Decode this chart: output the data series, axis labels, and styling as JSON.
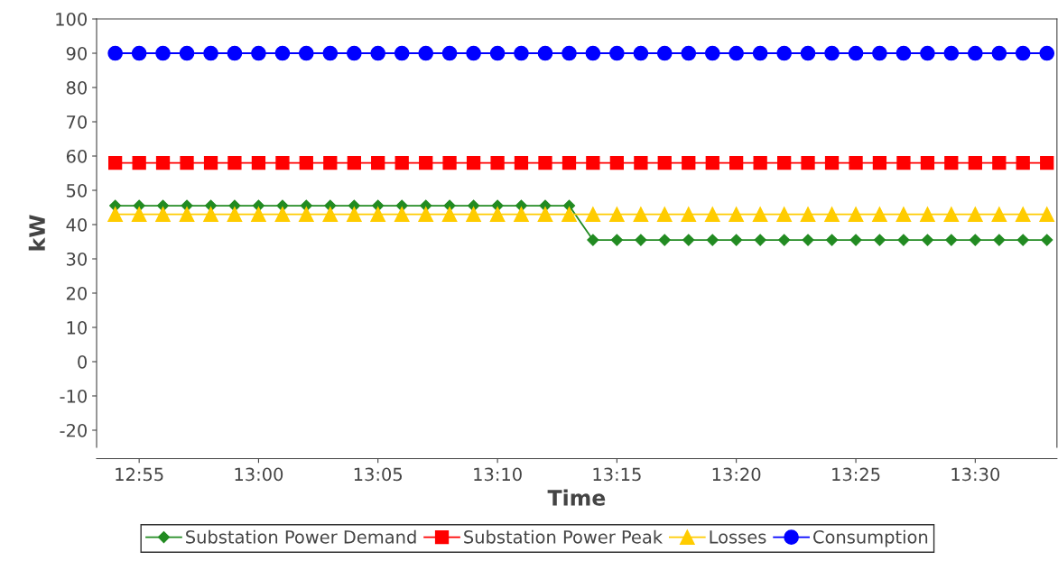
{
  "chart_data": {
    "type": "line",
    "xlabel": "Time",
    "ylabel": "kW",
    "x": [
      12.9,
      12.9167,
      12.9333,
      12.95,
      12.9667,
      12.9833,
      13,
      13.0167,
      13.0333,
      13.05,
      13.0667,
      13.0833,
      13.1,
      13.1167,
      13.1333,
      13.15,
      13.1667,
      13.1833,
      13.2,
      13.2167,
      13.2333,
      13.25,
      13.2667,
      13.2833,
      13.3,
      13.3167,
      13.3333,
      13.35,
      13.3667,
      13.3833,
      13.4,
      13.4167,
      13.4333,
      13.45,
      13.4667,
      13.4833,
      13.5,
      13.5167,
      13.5333,
      13.55
    ],
    "series": [
      {
        "name": "Substation Power Demand",
        "color": "#228b22",
        "marker": "diamond",
        "values": [
          45.5,
          45.5,
          45.5,
          45.5,
          45.5,
          45.5,
          45.5,
          45.5,
          45.5,
          45.5,
          45.5,
          45.5,
          45.5,
          45.5,
          45.5,
          45.5,
          45.5,
          45.5,
          45.5,
          45.5,
          35.5,
          35.5,
          35.5,
          35.5,
          35.5,
          35.5,
          35.5,
          35.5,
          35.5,
          35.5,
          35.5,
          35.5,
          35.5,
          35.5,
          35.5,
          35.5,
          35.5,
          35.5,
          35.5,
          35.5
        ]
      },
      {
        "name": "Substation Power Peak",
        "color": "#ff0000",
        "marker": "square",
        "values": [
          58,
          58,
          58,
          58,
          58,
          58,
          58,
          58,
          58,
          58,
          58,
          58,
          58,
          58,
          58,
          58,
          58,
          58,
          58,
          58,
          58,
          58,
          58,
          58,
          58,
          58,
          58,
          58,
          58,
          58,
          58,
          58,
          58,
          58,
          58,
          58,
          58,
          58,
          58,
          58
        ]
      },
      {
        "name": "Losses",
        "color": "#ffcc00",
        "marker": "triangle",
        "values": [
          43,
          43,
          43,
          43,
          43,
          43,
          43,
          43,
          43,
          43,
          43,
          43,
          43,
          43,
          43,
          43,
          43,
          43,
          43,
          43,
          43,
          43,
          43,
          43,
          43,
          43,
          43,
          43,
          43,
          43,
          43,
          43,
          43,
          43,
          43,
          43,
          43,
          43,
          43,
          43
        ]
      },
      {
        "name": "Consumption",
        "color": "#0000ff",
        "marker": "circle",
        "values": [
          90,
          90,
          90,
          90,
          90,
          90,
          90,
          90,
          90,
          90,
          90,
          90,
          90,
          90,
          90,
          90,
          90,
          90,
          90,
          90,
          90,
          90,
          90,
          90,
          90,
          90,
          90,
          90,
          90,
          90,
          90,
          90,
          90,
          90,
          90,
          90,
          90,
          90,
          90,
          90
        ]
      }
    ],
    "xlim": [
      12.887,
      13.557
    ],
    "xticks": [
      {
        "value": 12.9167,
        "label": "12:55"
      },
      {
        "value": 13,
        "label": "13:00"
      },
      {
        "value": 13.0833,
        "label": "13:05"
      },
      {
        "value": 13.1667,
        "label": "13:10"
      },
      {
        "value": 13.25,
        "label": "13:15"
      },
      {
        "value": 13.3333,
        "label": "13:20"
      },
      {
        "value": 13.4167,
        "label": "13:25"
      },
      {
        "value": 13.5,
        "label": "13:30"
      }
    ],
    "ylim": [
      -25,
      100
    ],
    "yticks": [
      {
        "value": -20,
        "label": "-20"
      },
      {
        "value": -10,
        "label": "-10"
      },
      0,
      10,
      20,
      30,
      40,
      50,
      60,
      70,
      80,
      90,
      100
    ],
    "grid": false,
    "legend": "bottom",
    "line_style": "solid"
  }
}
